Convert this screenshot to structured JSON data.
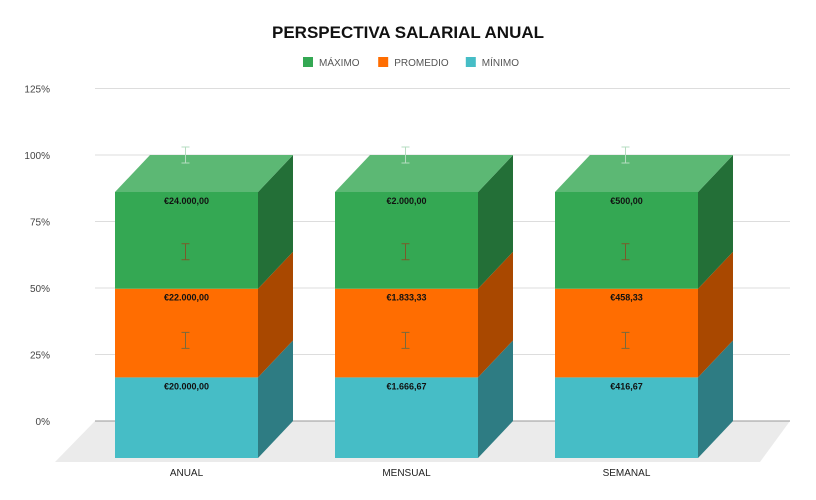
{
  "chart_data": {
    "type": "bar",
    "stacking": "percent",
    "three_d": true,
    "title": "PERSPECTIVA SALARIAL ANUAL",
    "categories": [
      "ANUAL",
      "MENSUAL",
      "SEMANAL"
    ],
    "series": [
      {
        "name": "MÍNIMO",
        "color": "#46bdc6",
        "side_color": "#2e7c83",
        "values": [
          20000,
          1666.67,
          416.67
        ],
        "labels": [
          "€20.000,00",
          "€1.666,67",
          "€416,67"
        ]
      },
      {
        "name": "PROMEDIO",
        "color": "#ff6d01",
        "side_color": "#a94800",
        "values": [
          22000,
          1833.33,
          458.33
        ],
        "labels": [
          "€22.000,00",
          "€1.833,33",
          "€458,33"
        ]
      },
      {
        "name": "MÁXIMO",
        "color": "#34a853",
        "side_color": "#236f37",
        "top_color": "#5cb874",
        "values": [
          24000,
          2000,
          500
        ],
        "labels": [
          "€24.000,00",
          "€2.000,00",
          "€500,00"
        ]
      }
    ],
    "legend_order": [
      "MÁXIMO",
      "PROMEDIO",
      "MÍNIMO"
    ],
    "legend_position": "top",
    "yticks": [
      "0%",
      "25%",
      "50%",
      "75%",
      "100%",
      "125%"
    ],
    "ylim": [
      0,
      125
    ],
    "grid": true,
    "error_bars": true
  }
}
